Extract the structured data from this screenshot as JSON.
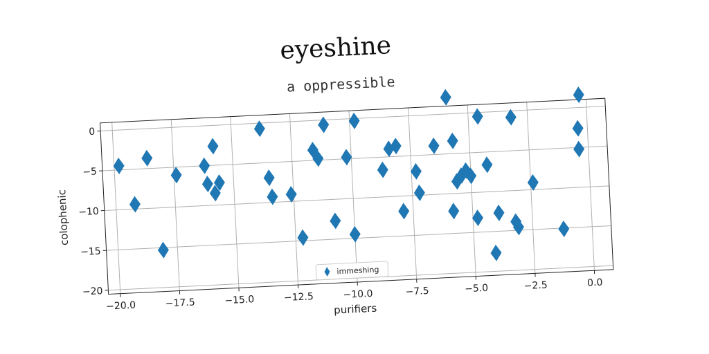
{
  "chart_data": {
    "type": "scatter",
    "title": "eyeshine",
    "subtitle": "a oppressible",
    "xlabel": "purifiers",
    "ylabel": "colophenic",
    "xlim": [
      -20.5,
      0.8
    ],
    "ylim": [
      -20.5,
      1.0
    ],
    "xticks": [
      -20.0,
      -17.5,
      -15.0,
      -12.5,
      -10.0,
      -7.5,
      -5.0,
      -2.5,
      0.0
    ],
    "xtick_labels": [
      "−20.0",
      "−17.5",
      "−15.0",
      "−12.5",
      "−10.0",
      "−7.5",
      "−5.0",
      "−2.5",
      "0.0"
    ],
    "yticks": [
      0,
      -5,
      -10,
      -15,
      -20
    ],
    "ytick_labels": [
      "0",
      "−5",
      "−10",
      "−15",
      "−20"
    ],
    "grid": true,
    "legend_position": "bottom-center",
    "marker": "diamond",
    "color": "#1f77b4",
    "series": [
      {
        "name": "immeshing",
        "points": [
          [
            -19.8,
            -4.5
          ],
          [
            -19.2,
            -9.4
          ],
          [
            -18.6,
            -3.7
          ],
          [
            -18.1,
            -15.3
          ],
          [
            -17.4,
            -6.0
          ],
          [
            -16.2,
            -5.0
          ],
          [
            -16.1,
            -7.3
          ],
          [
            -15.8,
            -8.5
          ],
          [
            -15.8,
            -2.6
          ],
          [
            -15.6,
            -7.2
          ],
          [
            -13.8,
            -0.7
          ],
          [
            -13.5,
            -6.9
          ],
          [
            -13.4,
            -9.3
          ],
          [
            -12.6,
            -9.1
          ],
          [
            -12.2,
            -14.6
          ],
          [
            -11.6,
            -3.7
          ],
          [
            -11.4,
            -4.8
          ],
          [
            -11.1,
            -0.6
          ],
          [
            -10.8,
            -12.7
          ],
          [
            -10.2,
            -4.8
          ],
          [
            -10.0,
            -14.5
          ],
          [
            -9.8,
            -0.3
          ],
          [
            -8.7,
            -6.6
          ],
          [
            -8.4,
            -4.0
          ],
          [
            -8.1,
            -3.7
          ],
          [
            -7.9,
            -11.9
          ],
          [
            -7.3,
            -7.0
          ],
          [
            -7.2,
            -9.7
          ],
          [
            -6.5,
            -3.9
          ],
          [
            -5.9,
            2.1
          ],
          [
            -5.7,
            -3.4
          ],
          [
            -5.6,
            -8.5
          ],
          [
            -5.4,
            -7.8
          ],
          [
            -5.2,
            -7.2
          ],
          [
            -5.0,
            -7.9
          ],
          [
            -5.8,
            -12.2
          ],
          [
            -4.8,
            -13.2
          ],
          [
            -4.6,
            -0.5
          ],
          [
            -4.3,
            -6.6
          ],
          [
            -4.1,
            -17.7
          ],
          [
            -3.9,
            -12.7
          ],
          [
            -3.2,
            -0.8
          ],
          [
            -3.2,
            -13.9
          ],
          [
            -3.1,
            -14.6
          ],
          [
            -2.4,
            -9.1
          ],
          [
            -1.2,
            -15.1
          ],
          [
            -0.4,
            -2.6
          ],
          [
            -0.4,
            -5.2
          ],
          [
            -0.3,
            1.6
          ]
        ]
      }
    ]
  }
}
